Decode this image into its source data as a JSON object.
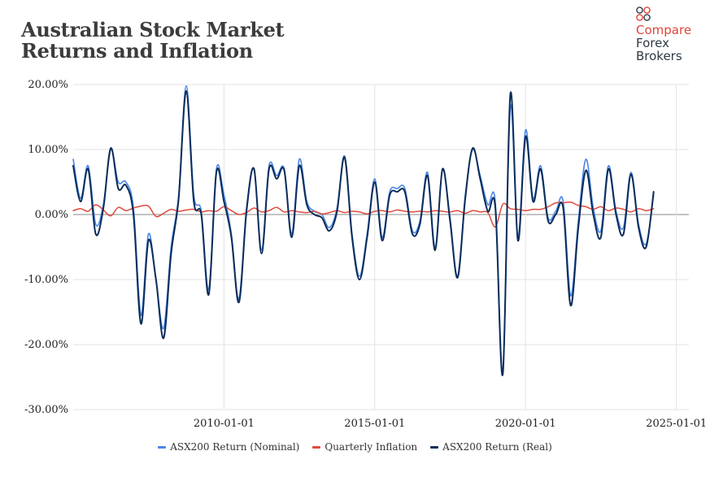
{
  "title_lines": [
    "Australian Stock Market",
    "Returns and Inflation"
  ],
  "logo": {
    "line1": "Compare",
    "line2": "Forex",
    "line3": "Brokers",
    "icon": "coins-icon"
  },
  "colors": {
    "nominal": "#4a86e8",
    "inflation": "#e04a3c",
    "real": "#0b2d5b",
    "grid": "#e3e3e3",
    "zero": "#8a8a8a"
  },
  "chart_data": {
    "type": "line",
    "title": "Australian Stock Market Returns and Inflation",
    "xlabel": "",
    "ylabel": "",
    "x_range": [
      "2005-01-01",
      "2025-06-01"
    ],
    "ylim": [
      -30,
      20
    ],
    "y_ticks": [
      20,
      10,
      0,
      -10,
      -20,
      -30
    ],
    "y_tick_labels": [
      "20.00%",
      "10.00%",
      "0.00%",
      "-10.00%",
      "-20.00%",
      "-30.00%"
    ],
    "x_ticks": [
      "2010-01-01",
      "2015-01-01",
      "2020-01-01",
      "2025-01-01"
    ],
    "legend_position": "bottom",
    "grid": true,
    "series": [
      {
        "name": "ASX200 Return (Nominal)",
        "color": "#4a86e8",
        "width": 1.6,
        "points": [
          [
            "2005-01-01",
            8.5
          ],
          [
            "2005-04-01",
            2.5
          ],
          [
            "2005-07-01",
            7.5
          ],
          [
            "2005-10-01",
            -1.5
          ],
          [
            "2006-01-01",
            1.5
          ],
          [
            "2006-04-01",
            10.0
          ],
          [
            "2006-07-01",
            5.0
          ],
          [
            "2006-10-01",
            5.0
          ],
          [
            "2007-01-01",
            1.0
          ],
          [
            "2007-04-01",
            -15.5
          ],
          [
            "2007-07-01",
            -3.0
          ],
          [
            "2007-10-01",
            -10.0
          ],
          [
            "2008-01-01",
            -17.5
          ],
          [
            "2008-04-01",
            -5.0
          ],
          [
            "2008-07-01",
            3.0
          ],
          [
            "2008-10-01",
            19.8
          ],
          [
            "2009-01-01",
            3.0
          ],
          [
            "2009-04-01",
            0.5
          ],
          [
            "2009-07-01",
            -11.5
          ],
          [
            "2009-10-01",
            7.0
          ],
          [
            "2010-01-01",
            3.0
          ],
          [
            "2010-04-01",
            -3.0
          ],
          [
            "2010-07-01",
            -13.0
          ],
          [
            "2010-10-01",
            1.0
          ],
          [
            "2011-01-01",
            7.0
          ],
          [
            "2011-04-01",
            -5.5
          ],
          [
            "2011-07-01",
            7.5
          ],
          [
            "2011-10-01",
            6.0
          ],
          [
            "2012-01-01",
            7.0
          ],
          [
            "2012-04-01",
            -3.0
          ],
          [
            "2012-07-01",
            8.5
          ],
          [
            "2012-10-01",
            2.0
          ],
          [
            "2013-01-01",
            0.5
          ],
          [
            "2013-04-01",
            0.0
          ],
          [
            "2013-07-01",
            -2.0
          ],
          [
            "2013-10-01",
            1.0
          ],
          [
            "2014-01-01",
            9.0
          ],
          [
            "2014-04-01",
            -3.0
          ],
          [
            "2014-07-01",
            -9.5
          ],
          [
            "2014-10-01",
            -3.0
          ],
          [
            "2015-01-01",
            5.5
          ],
          [
            "2015-04-01",
            -3.5
          ],
          [
            "2015-07-01",
            3.5
          ],
          [
            "2015-10-01",
            4.0
          ],
          [
            "2016-01-01",
            4.0
          ],
          [
            "2016-04-01",
            -2.5
          ],
          [
            "2016-07-01",
            -1.0
          ],
          [
            "2016-10-01",
            6.5
          ],
          [
            "2017-01-01",
            -5.0
          ],
          [
            "2017-04-01",
            7.0
          ],
          [
            "2017-07-01",
            -0.5
          ],
          [
            "2017-10-01",
            -9.5
          ],
          [
            "2018-01-01",
            3.0
          ],
          [
            "2018-04-01",
            10.0
          ],
          [
            "2018-07-01",
            6.0
          ],
          [
            "2018-10-01",
            1.5
          ],
          [
            "2019-01-01",
            1.8
          ],
          [
            "2019-04-01",
            -24.0
          ],
          [
            "2019-07-01",
            16.5
          ],
          [
            "2019-10-01",
            -3.5
          ],
          [
            "2020-01-01",
            13.0
          ],
          [
            "2020-04-01",
            2.5
          ],
          [
            "2020-07-01",
            7.5
          ],
          [
            "2020-10-01",
            -0.5
          ],
          [
            "2021-01-01",
            0.5
          ],
          [
            "2021-04-01",
            2.0
          ],
          [
            "2021-07-01",
            -12.5
          ],
          [
            "2021-10-01",
            -1.0
          ],
          [
            "2022-01-01",
            8.5
          ],
          [
            "2022-04-01",
            1.0
          ],
          [
            "2022-07-01",
            -2.5
          ],
          [
            "2022-10-01",
            7.5
          ],
          [
            "2023-01-01",
            0.5
          ],
          [
            "2023-04-01",
            -2.0
          ],
          [
            "2023-07-01",
            6.5
          ],
          [
            "2023-10-01",
            -1.5
          ],
          [
            "2024-01-01",
            -4.5
          ],
          [
            "2024-04-01",
            3.0
          ]
        ]
      },
      {
        "name": "Quarterly Inflation",
        "color": "#e04a3c",
        "width": 1.5,
        "points": [
          [
            "2005-01-01",
            0.6
          ],
          [
            "2005-04-01",
            0.9
          ],
          [
            "2005-07-01",
            0.5
          ],
          [
            "2005-10-01",
            1.5
          ],
          [
            "2006-01-01",
            0.7
          ],
          [
            "2006-04-01",
            -0.2
          ],
          [
            "2006-07-01",
            1.1
          ],
          [
            "2006-10-01",
            0.6
          ],
          [
            "2007-01-01",
            1.0
          ],
          [
            "2007-04-01",
            1.3
          ],
          [
            "2007-07-01",
            1.3
          ],
          [
            "2007-10-01",
            -0.3
          ],
          [
            "2008-01-01",
            0.2
          ],
          [
            "2008-04-01",
            0.8
          ],
          [
            "2008-07-01",
            0.5
          ],
          [
            "2008-10-01",
            0.7
          ],
          [
            "2009-01-01",
            0.8
          ],
          [
            "2009-04-01",
            0.4
          ],
          [
            "2009-07-01",
            0.6
          ],
          [
            "2009-10-01",
            0.5
          ],
          [
            "2010-01-01",
            1.2
          ],
          [
            "2010-04-01",
            0.6
          ],
          [
            "2010-07-01",
            0.0
          ],
          [
            "2010-10-01",
            0.3
          ],
          [
            "2011-01-01",
            1.0
          ],
          [
            "2011-04-01",
            0.4
          ],
          [
            "2011-07-01",
            0.6
          ],
          [
            "2011-10-01",
            1.1
          ],
          [
            "2012-01-01",
            0.4
          ],
          [
            "2012-04-01",
            0.6
          ],
          [
            "2012-07-01",
            0.4
          ],
          [
            "2012-10-01",
            0.3
          ],
          [
            "2013-01-01",
            0.5
          ],
          [
            "2013-04-01",
            0.1
          ],
          [
            "2013-07-01",
            0.3
          ],
          [
            "2013-10-01",
            0.6
          ],
          [
            "2014-01-01",
            0.3
          ],
          [
            "2014-04-01",
            0.5
          ],
          [
            "2014-07-01",
            0.4
          ],
          [
            "2014-10-01",
            0.1
          ],
          [
            "2015-01-01",
            0.5
          ],
          [
            "2015-04-01",
            0.6
          ],
          [
            "2015-07-01",
            0.4
          ],
          [
            "2015-10-01",
            0.7
          ],
          [
            "2016-01-01",
            0.5
          ],
          [
            "2016-04-01",
            0.4
          ],
          [
            "2016-07-01",
            0.5
          ],
          [
            "2016-10-01",
            0.4
          ],
          [
            "2017-01-01",
            0.6
          ],
          [
            "2017-04-01",
            0.5
          ],
          [
            "2017-07-01",
            0.4
          ],
          [
            "2017-10-01",
            0.6
          ],
          [
            "2018-01-01",
            0.2
          ],
          [
            "2018-04-01",
            0.6
          ],
          [
            "2018-07-01",
            0.4
          ],
          [
            "2018-10-01",
            0.3
          ],
          [
            "2019-01-01",
            -1.9
          ],
          [
            "2019-04-01",
            1.6
          ],
          [
            "2019-07-01",
            0.9
          ],
          [
            "2019-10-01",
            0.8
          ],
          [
            "2020-01-01",
            0.6
          ],
          [
            "2020-04-01",
            0.8
          ],
          [
            "2020-07-01",
            0.8
          ],
          [
            "2020-10-01",
            1.2
          ],
          [
            "2021-01-01",
            1.8
          ],
          [
            "2021-04-01",
            1.8
          ],
          [
            "2021-07-01",
            1.9
          ],
          [
            "2021-10-01",
            1.4
          ],
          [
            "2022-01-01",
            1.2
          ],
          [
            "2022-04-01",
            0.8
          ],
          [
            "2022-07-01",
            1.2
          ],
          [
            "2022-10-01",
            0.6
          ],
          [
            "2023-01-01",
            1.0
          ],
          [
            "2023-04-01",
            0.8
          ],
          [
            "2023-07-01",
            0.4
          ],
          [
            "2023-10-01",
            0.9
          ],
          [
            "2024-01-01",
            0.6
          ],
          [
            "2024-04-01",
            0.9
          ]
        ]
      },
      {
        "name": "ASX200 Return (Real)",
        "color": "#0b2d5b",
        "width": 2.0,
        "points": [
          [
            "2005-01-01",
            7.5
          ],
          [
            "2005-04-01",
            2.0
          ],
          [
            "2005-07-01",
            7.0
          ],
          [
            "2005-10-01",
            -3.0
          ],
          [
            "2006-01-01",
            1.0
          ],
          [
            "2006-04-01",
            10.2
          ],
          [
            "2006-07-01",
            4.0
          ],
          [
            "2006-10-01",
            4.5
          ],
          [
            "2007-01-01",
            0.0
          ],
          [
            "2007-04-01",
            -16.8
          ],
          [
            "2007-07-01",
            -4.0
          ],
          [
            "2007-10-01",
            -10.0
          ],
          [
            "2008-01-01",
            -19.0
          ],
          [
            "2008-04-01",
            -6.0
          ],
          [
            "2008-07-01",
            2.5
          ],
          [
            "2008-10-01",
            19.0
          ],
          [
            "2009-01-01",
            2.0
          ],
          [
            "2009-04-01",
            0.0
          ],
          [
            "2009-07-01",
            -12.3
          ],
          [
            "2009-10-01",
            6.5
          ],
          [
            "2010-01-01",
            2.0
          ],
          [
            "2010-04-01",
            -3.5
          ],
          [
            "2010-07-01",
            -13.5
          ],
          [
            "2010-10-01",
            0.5
          ],
          [
            "2011-01-01",
            7.0
          ],
          [
            "2011-04-01",
            -6.0
          ],
          [
            "2011-07-01",
            7.0
          ],
          [
            "2011-10-01",
            5.5
          ],
          [
            "2012-01-01",
            6.8
          ],
          [
            "2012-04-01",
            -3.5
          ],
          [
            "2012-07-01",
            7.5
          ],
          [
            "2012-10-01",
            1.5
          ],
          [
            "2013-01-01",
            0.0
          ],
          [
            "2013-04-01",
            -0.5
          ],
          [
            "2013-07-01",
            -2.5
          ],
          [
            "2013-10-01",
            0.5
          ],
          [
            "2014-01-01",
            8.8
          ],
          [
            "2014-04-01",
            -3.5
          ],
          [
            "2014-07-01",
            -10.0
          ],
          [
            "2014-10-01",
            -3.5
          ],
          [
            "2015-01-01",
            5.0
          ],
          [
            "2015-04-01",
            -4.0
          ],
          [
            "2015-07-01",
            3.0
          ],
          [
            "2015-10-01",
            3.5
          ],
          [
            "2016-01-01",
            3.5
          ],
          [
            "2016-04-01",
            -3.0
          ],
          [
            "2016-07-01",
            -1.5
          ],
          [
            "2016-10-01",
            6.0
          ],
          [
            "2017-01-01",
            -5.5
          ],
          [
            "2017-04-01",
            7.0
          ],
          [
            "2017-07-01",
            -1.0
          ],
          [
            "2017-10-01",
            -9.7
          ],
          [
            "2018-01-01",
            2.5
          ],
          [
            "2018-04-01",
            10.2
          ],
          [
            "2018-07-01",
            5.5
          ],
          [
            "2018-10-01",
            0.5
          ],
          [
            "2019-01-01",
            1.0
          ],
          [
            "2019-04-01",
            -24.5
          ],
          [
            "2019-07-01",
            18.5
          ],
          [
            "2019-10-01",
            -4.0
          ],
          [
            "2020-01-01",
            12.0
          ],
          [
            "2020-04-01",
            2.0
          ],
          [
            "2020-07-01",
            7.0
          ],
          [
            "2020-10-01",
            -1.0
          ],
          [
            "2021-01-01",
            0.0
          ],
          [
            "2021-04-01",
            1.0
          ],
          [
            "2021-07-01",
            -14.0
          ],
          [
            "2021-10-01",
            -2.0
          ],
          [
            "2022-01-01",
            6.8
          ],
          [
            "2022-04-01",
            0.0
          ],
          [
            "2022-07-01",
            -3.5
          ],
          [
            "2022-10-01",
            7.0
          ],
          [
            "2023-01-01",
            0.0
          ],
          [
            "2023-04-01",
            -3.0
          ],
          [
            "2023-07-01",
            6.2
          ],
          [
            "2023-10-01",
            -2.0
          ],
          [
            "2024-01-01",
            -5.0
          ],
          [
            "2024-04-01",
            3.5
          ]
        ]
      }
    ]
  }
}
